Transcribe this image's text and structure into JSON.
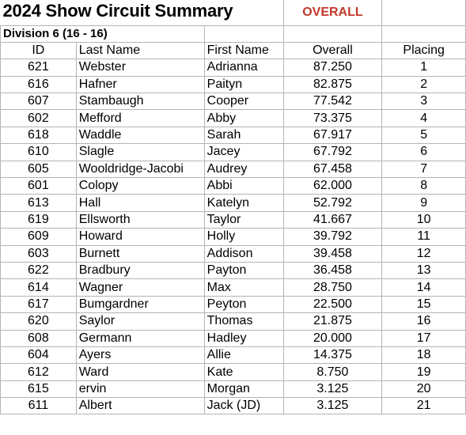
{
  "title": "2024 Show Circuit Summary",
  "overall_tag": "OVERALL",
  "colors": {
    "overall_tag": "#c0392b"
  },
  "division": "Division 6 (16 - 16)",
  "headers": {
    "id": "ID",
    "last_name": "Last Name",
    "first_name": "First Name",
    "overall": "Overall",
    "placing": "Placing"
  },
  "rows": [
    {
      "id": "621",
      "last": "Webster",
      "first": "Adrianna",
      "overall": "87.250",
      "placing": "1"
    },
    {
      "id": "616",
      "last": "Hafner",
      "first": "Paityn",
      "overall": "82.875",
      "placing": "2"
    },
    {
      "id": "607",
      "last": "Stambaugh",
      "first": "Cooper",
      "overall": "77.542",
      "placing": "3"
    },
    {
      "id": "602",
      "last": "Mefford",
      "first": "Abby",
      "overall": "73.375",
      "placing": "4"
    },
    {
      "id": "618",
      "last": "Waddle",
      "first": "Sarah",
      "overall": "67.917",
      "placing": "5"
    },
    {
      "id": "610",
      "last": "Slagle",
      "first": "Jacey",
      "overall": "67.792",
      "placing": "6"
    },
    {
      "id": "605",
      "last": "Wooldridge-Jacobi",
      "first": "Audrey",
      "overall": "67.458",
      "placing": "7"
    },
    {
      "id": "601",
      "last": "Colopy",
      "first": "Abbi",
      "overall": "62.000",
      "placing": "8"
    },
    {
      "id": "613",
      "last": "Hall",
      "first": "Katelyn",
      "overall": "52.792",
      "placing": "9"
    },
    {
      "id": "619",
      "last": "Ellsworth",
      "first": "Taylor",
      "overall": "41.667",
      "placing": "10"
    },
    {
      "id": "609",
      "last": "Howard",
      "first": "Holly",
      "overall": "39.792",
      "placing": "11"
    },
    {
      "id": "603",
      "last": "Burnett",
      "first": "Addison",
      "overall": "39.458",
      "placing": "12"
    },
    {
      "id": "622",
      "last": "Bradbury",
      "first": "Payton",
      "overall": "36.458",
      "placing": "13"
    },
    {
      "id": "614",
      "last": "Wagner",
      "first": "Max",
      "overall": "28.750",
      "placing": "14"
    },
    {
      "id": "617",
      "last": "Bumgardner",
      "first": "Peyton",
      "overall": "22.500",
      "placing": "15"
    },
    {
      "id": "620",
      "last": "Saylor",
      "first": "Thomas",
      "overall": "21.875",
      "placing": "16"
    },
    {
      "id": "608",
      "last": "Germann",
      "first": "Hadley",
      "overall": "20.000",
      "placing": "17"
    },
    {
      "id": "604",
      "last": "Ayers",
      "first": "Allie",
      "overall": "14.375",
      "placing": "18"
    },
    {
      "id": "612",
      "last": "Ward",
      "first": "Kate",
      "overall": "8.750",
      "placing": "19"
    },
    {
      "id": "615",
      "last": "ervin",
      "first": "Morgan",
      "overall": "3.125",
      "placing": "20"
    },
    {
      "id": "611",
      "last": "Albert",
      "first": "Jack (JD)",
      "overall": "3.125",
      "placing": "21"
    }
  ]
}
